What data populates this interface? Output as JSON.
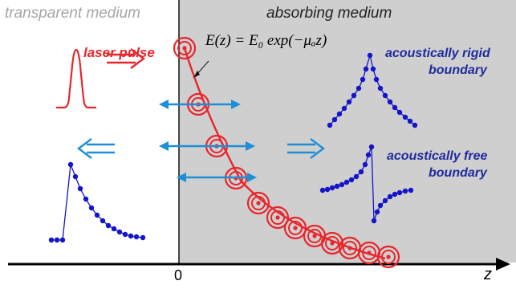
{
  "labels": {
    "transparent_medium": "transparent medium",
    "absorbing_medium": "absorbing medium",
    "laser_pulse": "laser pulse",
    "equation": "E(z) = E₀ exp(−μₐz)",
    "rigid_line1": "acoustically rigid",
    "rigid_line2": "boundary",
    "free_line1": "acoustically free",
    "free_line2": "boundary",
    "axis_origin": "0",
    "axis_z": "z"
  },
  "colors": {
    "absorbing_bg": "#cfcfcf",
    "laser": "#e8262c",
    "arrow_blue": "#1e8fd6",
    "dots_blue": "#1414c8",
    "label_navy": "#1f2a9c",
    "axis": "#000000",
    "gray_text": "#a6a6a6"
  },
  "icons": {
    "pulse_icon": "gaussian-pulse",
    "right_arrow_icon": "double-arrow-right",
    "left_arrow_icon": "double-arrow-left",
    "bidirectional_arrow_icon": "double-headed-arrow",
    "target_ring_icon": "concentric-circles"
  }
}
